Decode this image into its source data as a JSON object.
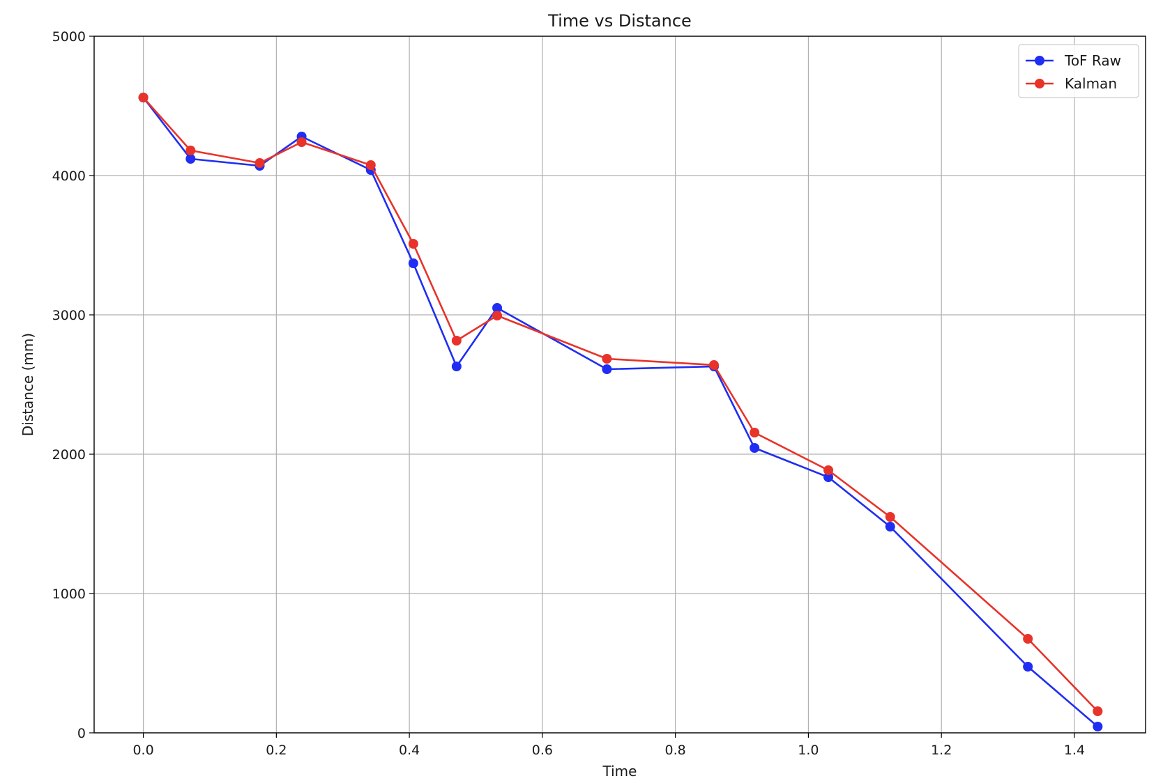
{
  "chart_data": {
    "type": "line",
    "title": "Time vs Distance",
    "xlabel": "Time",
    "ylabel": "Distance (mm)",
    "xlim": [
      -0.074,
      1.507
    ],
    "ylim": [
      0,
      5000
    ],
    "xticks": [
      0.0,
      0.2,
      0.4,
      0.6,
      0.8,
      1.0,
      1.2,
      1.4
    ],
    "xtick_labels": [
      "0.0",
      "0.2",
      "0.4",
      "0.6",
      "0.8",
      "1.0",
      "1.2",
      "1.4"
    ],
    "yticks": [
      0,
      1000,
      2000,
      3000,
      4000,
      5000
    ],
    "ytick_labels": [
      "0",
      "1000",
      "2000",
      "3000",
      "4000",
      "5000"
    ],
    "grid": true,
    "legend_position": "top-right",
    "series": [
      {
        "name": "ToF Raw",
        "color": "#1f2ef2",
        "marker": "circle",
        "x": [
          0.0,
          0.071,
          0.175,
          0.238,
          0.342,
          0.406,
          0.471,
          0.532,
          0.697,
          0.858,
          0.919,
          1.03,
          1.123,
          1.33,
          1.435
        ],
        "y": [
          4560,
          4120,
          4070,
          4280,
          4040,
          3370,
          2630,
          3050,
          2610,
          2630,
          2045,
          1835,
          1480,
          475,
          45
        ]
      },
      {
        "name": "Kalman",
        "color": "#e8332a",
        "marker": "circle",
        "x": [
          0.0,
          0.071,
          0.175,
          0.238,
          0.342,
          0.406,
          0.471,
          0.532,
          0.697,
          0.858,
          0.919,
          1.03,
          1.123,
          1.33,
          1.435
        ],
        "y": [
          4560,
          4180,
          4090,
          4240,
          4075,
          3510,
          2815,
          2995,
          2685,
          2640,
          2155,
          1885,
          1550,
          675,
          155
        ]
      }
    ]
  }
}
